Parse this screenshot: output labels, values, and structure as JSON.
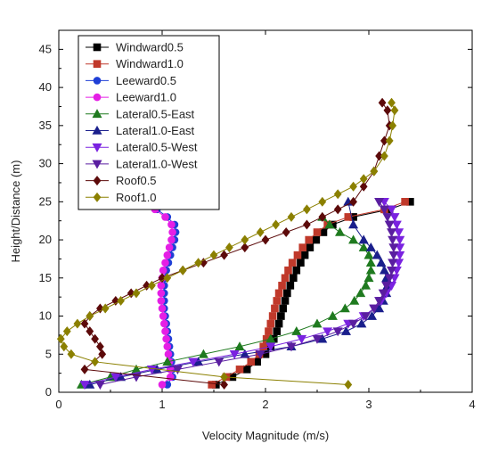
{
  "chart_data": {
    "type": "line",
    "xlabel": "Velocity Magnitude (m/s)",
    "ylabel": "Height/Distance (m)",
    "xlim": [
      0,
      4
    ],
    "ylim": [
      0,
      47.5
    ],
    "xticks": [
      0,
      1,
      2,
      3,
      4
    ],
    "yticks": [
      0,
      5,
      10,
      15,
      20,
      25,
      30,
      35,
      40,
      45
    ],
    "grid": false,
    "legend_position": "top-left",
    "series": [
      {
        "name": "Windward0.5",
        "color": "#000000",
        "marker": "square",
        "points": [
          [
            1.52,
            1
          ],
          [
            1.68,
            2
          ],
          [
            1.82,
            3
          ],
          [
            1.92,
            4
          ],
          [
            2.0,
            5
          ],
          [
            2.05,
            6
          ],
          [
            2.08,
            7
          ],
          [
            2.11,
            8
          ],
          [
            2.13,
            9
          ],
          [
            2.15,
            10
          ],
          [
            2.17,
            11
          ],
          [
            2.19,
            12
          ],
          [
            2.21,
            13
          ],
          [
            2.24,
            14
          ],
          [
            2.27,
            15
          ],
          [
            2.3,
            16
          ],
          [
            2.34,
            17
          ],
          [
            2.38,
            18
          ],
          [
            2.43,
            19
          ],
          [
            2.49,
            20
          ],
          [
            2.56,
            21
          ],
          [
            2.65,
            22
          ],
          [
            2.85,
            23
          ],
          [
            3.2,
            24
          ],
          [
            3.4,
            25
          ]
        ]
      },
      {
        "name": "Windward1.0",
        "color": "#c0392b",
        "marker": "square",
        "points": [
          [
            1.48,
            1
          ],
          [
            1.62,
            2
          ],
          [
            1.75,
            3
          ],
          [
            1.86,
            4
          ],
          [
            1.94,
            5
          ],
          [
            1.98,
            6
          ],
          [
            2.01,
            7
          ],
          [
            2.03,
            8
          ],
          [
            2.05,
            9
          ],
          [
            2.07,
            10
          ],
          [
            2.09,
            11
          ],
          [
            2.11,
            12
          ],
          [
            2.13,
            13
          ],
          [
            2.16,
            14
          ],
          [
            2.19,
            15
          ],
          [
            2.22,
            16
          ],
          [
            2.26,
            17
          ],
          [
            2.31,
            18
          ],
          [
            2.36,
            19
          ],
          [
            2.42,
            20
          ],
          [
            2.5,
            21
          ],
          [
            2.6,
            22
          ],
          [
            2.8,
            23
          ],
          [
            3.15,
            24
          ],
          [
            3.35,
            25
          ]
        ]
      },
      {
        "name": "Leeward0.5",
        "color": "#1f3fd6",
        "marker": "circle",
        "points": [
          [
            0.85,
            25
          ],
          [
            0.95,
            24
          ],
          [
            1.05,
            23
          ],
          [
            1.12,
            22
          ],
          [
            1.13,
            21
          ],
          [
            1.12,
            20
          ],
          [
            1.1,
            19
          ],
          [
            1.08,
            18
          ],
          [
            1.06,
            17
          ],
          [
            1.04,
            16
          ],
          [
            1.03,
            15
          ],
          [
            1.02,
            14
          ],
          [
            1.02,
            13
          ],
          [
            1.02,
            12
          ],
          [
            1.02,
            11
          ],
          [
            1.03,
            10
          ],
          [
            1.04,
            9
          ],
          [
            1.05,
            8
          ],
          [
            1.06,
            7
          ],
          [
            1.07,
            6
          ],
          [
            1.08,
            5
          ],
          [
            1.09,
            4
          ],
          [
            1.1,
            3
          ],
          [
            1.1,
            2
          ],
          [
            1.05,
            1
          ]
        ]
      },
      {
        "name": "Leeward1.0",
        "color": "#e51fe5",
        "marker": "circle",
        "points": [
          [
            0.83,
            25
          ],
          [
            0.93,
            24
          ],
          [
            1.03,
            23
          ],
          [
            1.09,
            22
          ],
          [
            1.1,
            21
          ],
          [
            1.09,
            20
          ],
          [
            1.07,
            19
          ],
          [
            1.05,
            18
          ],
          [
            1.03,
            17
          ],
          [
            1.01,
            16
          ],
          [
            1.0,
            15
          ],
          [
            0.99,
            14
          ],
          [
            0.99,
            13
          ],
          [
            0.99,
            12
          ],
          [
            1.0,
            11
          ],
          [
            1.01,
            10
          ],
          [
            1.02,
            9
          ],
          [
            1.03,
            8
          ],
          [
            1.04,
            7
          ],
          [
            1.05,
            6
          ],
          [
            1.06,
            5
          ],
          [
            1.07,
            4
          ],
          [
            1.08,
            3
          ],
          [
            1.08,
            2
          ],
          [
            1.0,
            1
          ]
        ]
      },
      {
        "name": "Lateral0.5-East",
        "color": "#1f7a1f",
        "marker": "triangle-up",
        "points": [
          [
            0.22,
            1
          ],
          [
            0.5,
            2
          ],
          [
            0.75,
            3
          ],
          [
            1.05,
            4
          ],
          [
            1.4,
            5
          ],
          [
            1.75,
            6
          ],
          [
            2.05,
            7
          ],
          [
            2.3,
            8
          ],
          [
            2.5,
            9
          ],
          [
            2.65,
            10
          ],
          [
            2.77,
            11
          ],
          [
            2.86,
            12
          ],
          [
            2.92,
            13
          ],
          [
            2.97,
            14
          ],
          [
            3.0,
            15
          ],
          [
            3.02,
            16
          ],
          [
            3.02,
            17
          ],
          [
            3.0,
            18
          ],
          [
            2.95,
            19
          ],
          [
            2.85,
            20
          ],
          [
            2.72,
            21
          ],
          [
            2.62,
            22
          ],
          [
            2.55,
            23
          ]
        ]
      },
      {
        "name": "Lateral1.0-East",
        "color": "#1a1f8c",
        "marker": "triangle-up",
        "points": [
          [
            0.3,
            1
          ],
          [
            0.6,
            2
          ],
          [
            0.95,
            3
          ],
          [
            1.35,
            4
          ],
          [
            1.8,
            5
          ],
          [
            2.25,
            6
          ],
          [
            2.55,
            7
          ],
          [
            2.78,
            8
          ],
          [
            2.93,
            9
          ],
          [
            3.03,
            10
          ],
          [
            3.1,
            11
          ],
          [
            3.14,
            12
          ],
          [
            3.17,
            13
          ],
          [
            3.18,
            14
          ],
          [
            3.17,
            15
          ],
          [
            3.15,
            16
          ],
          [
            3.12,
            17
          ],
          [
            3.08,
            18
          ],
          [
            3.02,
            19
          ],
          [
            2.95,
            20
          ],
          [
            2.85,
            22
          ],
          [
            2.8,
            25
          ]
        ]
      },
      {
        "name": "Lateral0.5-West",
        "color": "#7a22e0",
        "marker": "triangle-down",
        "points": [
          [
            0.25,
            1
          ],
          [
            0.55,
            2
          ],
          [
            0.9,
            3
          ],
          [
            1.3,
            4
          ],
          [
            1.7,
            5
          ],
          [
            2.05,
            6
          ],
          [
            2.35,
            7
          ],
          [
            2.6,
            8
          ],
          [
            2.8,
            9
          ],
          [
            2.95,
            10
          ],
          [
            3.05,
            11
          ],
          [
            3.12,
            12
          ],
          [
            3.17,
            13
          ],
          [
            3.22,
            14
          ],
          [
            3.25,
            15
          ],
          [
            3.27,
            16
          ],
          [
            3.29,
            17
          ],
          [
            3.3,
            18
          ],
          [
            3.3,
            19
          ],
          [
            3.3,
            20
          ],
          [
            3.29,
            21
          ],
          [
            3.27,
            22
          ],
          [
            3.25,
            23
          ],
          [
            3.22,
            24
          ],
          [
            3.15,
            25
          ]
        ]
      },
      {
        "name": "Lateral1.0-West",
        "color": "#5a1ea0",
        "marker": "triangle-down",
        "points": [
          [
            0.4,
            1
          ],
          [
            0.75,
            2
          ],
          [
            1.15,
            3
          ],
          [
            1.55,
            4
          ],
          [
            1.95,
            5
          ],
          [
            2.25,
            6
          ],
          [
            2.5,
            7
          ],
          [
            2.7,
            8
          ],
          [
            2.85,
            9
          ],
          [
            2.97,
            10
          ],
          [
            3.05,
            11
          ],
          [
            3.1,
            12
          ],
          [
            3.14,
            13
          ],
          [
            3.17,
            14
          ],
          [
            3.2,
            15
          ],
          [
            3.22,
            16
          ],
          [
            3.23,
            17
          ],
          [
            3.24,
            18
          ],
          [
            3.24,
            19
          ],
          [
            3.23,
            20
          ],
          [
            3.22,
            21
          ],
          [
            3.2,
            22
          ],
          [
            3.18,
            23
          ],
          [
            3.15,
            24
          ],
          [
            3.1,
            25
          ]
        ]
      },
      {
        "name": "Roof0.5",
        "color": "#5c0a0a",
        "marker": "diamond",
        "points": [
          [
            1.6,
            1
          ],
          [
            0.25,
            3
          ],
          [
            0.42,
            5
          ],
          [
            0.4,
            6
          ],
          [
            0.35,
            7
          ],
          [
            0.3,
            8
          ],
          [
            0.25,
            9
          ],
          [
            0.3,
            10
          ],
          [
            0.4,
            11
          ],
          [
            0.55,
            12
          ],
          [
            0.7,
            13
          ],
          [
            0.85,
            14
          ],
          [
            1.0,
            15
          ],
          [
            1.2,
            16
          ],
          [
            1.4,
            17
          ],
          [
            1.6,
            18
          ],
          [
            1.8,
            19
          ],
          [
            2.0,
            20
          ],
          [
            2.2,
            21
          ],
          [
            2.4,
            22
          ],
          [
            2.55,
            23
          ],
          [
            2.7,
            24
          ],
          [
            2.85,
            25
          ],
          [
            2.95,
            27
          ],
          [
            3.05,
            29
          ],
          [
            3.1,
            31
          ],
          [
            3.15,
            33
          ],
          [
            3.2,
            35
          ],
          [
            3.18,
            37
          ],
          [
            3.13,
            38
          ]
        ]
      },
      {
        "name": "Roof1.0",
        "color": "#8b8000",
        "marker": "diamond",
        "points": [
          [
            2.8,
            1
          ],
          [
            1.6,
            2
          ],
          [
            0.35,
            4
          ],
          [
            0.12,
            5
          ],
          [
            0.05,
            6
          ],
          [
            0.02,
            7
          ],
          [
            0.08,
            8
          ],
          [
            0.18,
            9
          ],
          [
            0.3,
            10
          ],
          [
            0.45,
            11
          ],
          [
            0.6,
            12
          ],
          [
            0.75,
            13
          ],
          [
            0.9,
            14
          ],
          [
            1.05,
            15
          ],
          [
            1.2,
            16
          ],
          [
            1.35,
            17
          ],
          [
            1.5,
            18
          ],
          [
            1.65,
            19
          ],
          [
            1.8,
            20
          ],
          [
            1.95,
            21
          ],
          [
            2.1,
            22
          ],
          [
            2.25,
            23
          ],
          [
            2.4,
            24
          ],
          [
            2.55,
            25
          ],
          [
            2.7,
            26
          ],
          [
            2.85,
            27
          ],
          [
            2.95,
            28
          ],
          [
            3.05,
            29
          ],
          [
            3.15,
            31
          ],
          [
            3.2,
            33
          ],
          [
            3.23,
            35
          ],
          [
            3.25,
            37
          ],
          [
            3.22,
            38
          ]
        ]
      }
    ]
  }
}
